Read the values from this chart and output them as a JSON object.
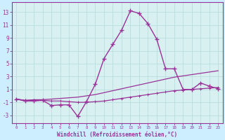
{
  "xlabel": "Windchill (Refroidissement éolien,°C)",
  "bg_color": "#cceeff",
  "plot_bg": "#d8f0f0",
  "line_color": "#993399",
  "grid_color": "#bbdddd",
  "x_data": [
    0,
    1,
    2,
    3,
    4,
    5,
    6,
    7,
    8,
    9,
    10,
    11,
    12,
    13,
    14,
    15,
    16,
    17,
    18,
    19,
    20,
    21,
    22,
    23
  ],
  "line1_y": [
    -0.5,
    -0.8,
    -0.8,
    -0.7,
    -1.5,
    -1.4,
    -1.4,
    -3.2,
    -0.9,
    1.8,
    5.8,
    8.0,
    10.2,
    13.2,
    12.8,
    11.2,
    8.8,
    4.2,
    4.2,
    1.0,
    1.0,
    2.0,
    1.5,
    1.1
  ],
  "line2_y": [
    -0.5,
    -0.7,
    -0.6,
    -0.6,
    -0.5,
    -0.4,
    -0.3,
    -0.2,
    0.0,
    0.2,
    0.5,
    0.8,
    1.1,
    1.4,
    1.7,
    2.0,
    2.3,
    2.6,
    2.9,
    3.1,
    3.3,
    3.5,
    3.7,
    3.9
  ],
  "line3_y": [
    -0.5,
    -0.7,
    -0.7,
    -0.7,
    -0.8,
    -0.8,
    -0.9,
    -1.0,
    -1.0,
    -0.9,
    -0.8,
    -0.6,
    -0.4,
    -0.2,
    0.0,
    0.2,
    0.4,
    0.6,
    0.8,
    0.9,
    1.0,
    1.1,
    1.2,
    1.3
  ],
  "yticks": [
    -3,
    -1,
    1,
    3,
    5,
    7,
    9,
    11,
    13
  ],
  "ylim": [
    -4.2,
    14.5
  ],
  "xlim": [
    -0.5,
    23.5
  ],
  "xtick_fontsize": 4.2,
  "ytick_fontsize": 5.5,
  "xlabel_fontsize": 5.5
}
